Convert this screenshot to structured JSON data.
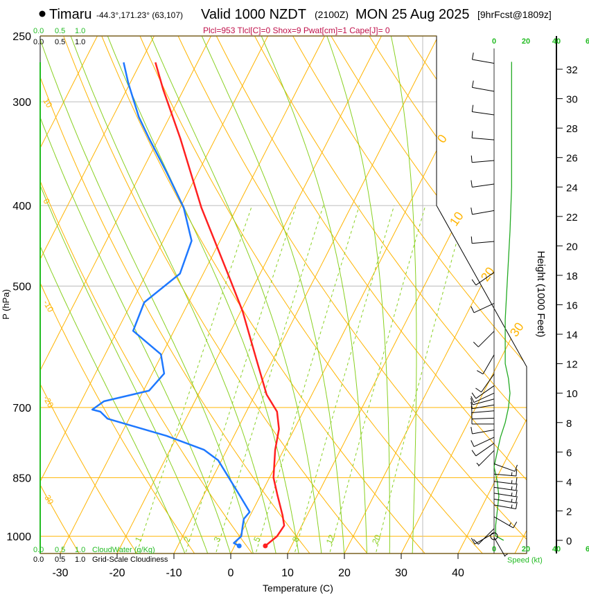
{
  "header": {
    "station": "Timaru",
    "coords": "-44.3°,171.23° (63,107)",
    "valid": "Valid 1000 NZDT",
    "utc": "(2100Z)",
    "date": "MON 25 Aug 2025",
    "forecast": "[9hrFcst@1809z]",
    "indices": "Plcl=953 Tlcl[C]=0 Shox=9 Pwat[cm]=1 Cape[J]= 0"
  },
  "cloud_scale": {
    "ticks": [
      "0.0",
      "0.5",
      "1.0"
    ],
    "cloudwater_label": "CloudWater (g/Kg)",
    "cloudiness_label": "Grid-Scale Cloudiness"
  },
  "colors": {
    "temperature": "#ff2020",
    "dewpoint": "#1e78ff",
    "isotherm": "#ffb400",
    "moist": "#88d020",
    "speed": "#22aa22"
  },
  "chart_data": {
    "type": "line",
    "subtype": "skew-T log-P",
    "xlabel": "Temperature (C)",
    "ylabel": "P (hPa)",
    "y2label": "Height (1000 Feet)",
    "speed_label": "Speed (kt)",
    "x_ticks": [
      "-30",
      "-20",
      "-10",
      "0",
      "10",
      "20",
      "30",
      "40"
    ],
    "x_tick_values": [
      -30,
      -20,
      -10,
      0,
      10,
      20,
      30,
      40
    ],
    "p_ticks": [
      "250",
      "300",
      "400",
      "500",
      "700",
      "850",
      "1000"
    ],
    "p_tick_values": [
      250,
      300,
      400,
      500,
      700,
      850,
      1000
    ],
    "height_ticks": [
      "0",
      "2",
      "4",
      "6",
      "8",
      "10",
      "12",
      "14",
      "16",
      "18",
      "20",
      "22",
      "24",
      "26",
      "28",
      "30",
      "32"
    ],
    "speed_ticks": [
      "0",
      "20",
      "40",
      "6"
    ],
    "mixing_ratio_labels": [
      "1",
      "2",
      "3",
      "5",
      "8",
      "12",
      "20"
    ],
    "mixing_ratio_values": [
      1,
      2,
      3,
      5,
      8,
      12,
      20
    ],
    "isotherm_labels_left": [
      "10",
      "0",
      "-10",
      "-20",
      "-30"
    ],
    "isotherm_labels_right": [
      "0",
      "10",
      "20",
      "30"
    ],
    "ylim_hPa": [
      1049,
      250
    ],
    "series": [
      {
        "name": "Temperature",
        "color": "#ff2020",
        "points": [
          [
            1027,
            5.4
          ],
          [
            1000,
            6.6
          ],
          [
            971,
            6.9
          ],
          [
            944,
            5.7
          ],
          [
            891,
            2.9
          ],
          [
            850,
            0.7
          ],
          [
            787,
            -1.5
          ],
          [
            743,
            -2.7
          ],
          [
            708,
            -4.6
          ],
          [
            675,
            -8.0
          ],
          [
            613,
            -12.9
          ],
          [
            536,
            -19.7
          ],
          [
            487,
            -25.2
          ],
          [
            402,
            -36.3
          ],
          [
            332,
            -46.2
          ],
          [
            290,
            -53.6
          ],
          [
            269,
            -57.4
          ]
        ]
      },
      {
        "name": "Dewpoint",
        "color": "#1e78ff",
        "points": [
          [
            1027,
            0.8
          ],
          [
            1019,
            -0.4
          ],
          [
            1000,
            0.3
          ],
          [
            971,
            -0.4
          ],
          [
            953,
            -0.8
          ],
          [
            935,
            -0.4
          ],
          [
            891,
            -3.8
          ],
          [
            810,
            -10.6
          ],
          [
            787,
            -14.0
          ],
          [
            757,
            -21.9
          ],
          [
            722,
            -33.8
          ],
          [
            708,
            -35.7
          ],
          [
            704,
            -37.3
          ],
          [
            688,
            -36.0
          ],
          [
            668,
            -29.0
          ],
          [
            637,
            -27.9
          ],
          [
            604,
            -30.2
          ],
          [
            566,
            -37.2
          ],
          [
            523,
            -37.8
          ],
          [
            483,
            -34.1
          ],
          [
            441,
            -35.0
          ],
          [
            402,
            -39.4
          ],
          [
            365,
            -45.5
          ],
          [
            332,
            -51.7
          ],
          [
            313,
            -55.4
          ],
          [
            285,
            -60.3
          ],
          [
            269,
            -63.0
          ]
        ]
      }
    ],
    "wind_speed_profile": [
      [
        0,
        6
      ],
      [
        0.3,
        1
      ],
      [
        1,
        1
      ],
      [
        2,
        2
      ],
      [
        3,
        3
      ],
      [
        4,
        2
      ],
      [
        5,
        0
      ],
      [
        6,
        2
      ],
      [
        7,
        4
      ],
      [
        8,
        7
      ],
      [
        9,
        9
      ],
      [
        10,
        10
      ],
      [
        11,
        9
      ],
      [
        12,
        7
      ],
      [
        13,
        7
      ],
      [
        15,
        7
      ],
      [
        17,
        8
      ],
      [
        19,
        9
      ],
      [
        21,
        10
      ],
      [
        24,
        11
      ],
      [
        27,
        11
      ],
      [
        30,
        11
      ],
      [
        32.5,
        11
      ]
    ],
    "wind_barbs": [
      {
        "h": 32.4,
        "dir": 280,
        "spd": 10
      },
      {
        "h": 30.5,
        "dir": 280,
        "spd": 10
      },
      {
        "h": 28.9,
        "dir": 278,
        "spd": 10
      },
      {
        "h": 27.2,
        "dir": 275,
        "spd": 10
      },
      {
        "h": 25.8,
        "dir": 265,
        "spd": 10
      },
      {
        "h": 24.2,
        "dir": 262,
        "spd": 10
      },
      {
        "h": 22.4,
        "dir": 260,
        "spd": 10
      },
      {
        "h": 20.3,
        "dir": 265,
        "spd": 10
      },
      {
        "h": 18.2,
        "dir": 235,
        "spd": 10
      },
      {
        "h": 16.1,
        "dir": 245,
        "spd": 10
      },
      {
        "h": 14.2,
        "dir": 225,
        "spd": 10
      },
      {
        "h": 12.6,
        "dir": 210,
        "spd": 10
      },
      {
        "h": 11.3,
        "dir": 215,
        "spd": 10
      },
      {
        "h": 10.5,
        "dir": 235,
        "spd": 10
      },
      {
        "h": 10.0,
        "dir": 245,
        "spd": 10
      },
      {
        "h": 9.6,
        "dir": 255,
        "spd": 10
      },
      {
        "h": 9.2,
        "dir": 260,
        "spd": 10
      },
      {
        "h": 8.8,
        "dir": 265,
        "spd": 10
      },
      {
        "h": 8.3,
        "dir": 268,
        "spd": 10
      },
      {
        "h": 7.9,
        "dir": 270,
        "spd": 10
      },
      {
        "h": 7.5,
        "dir": 260,
        "spd": 10
      },
      {
        "h": 7.0,
        "dir": 245,
        "spd": 10
      },
      {
        "h": 6.6,
        "dir": 235,
        "spd": 10
      },
      {
        "h": 6.1,
        "dir": 225,
        "spd": 5
      },
      {
        "h": 5.2,
        "dir": 110,
        "spd": 10
      },
      {
        "h": 4.5,
        "dir": 95,
        "spd": 15
      },
      {
        "h": 4.0,
        "dir": 97,
        "spd": 15
      },
      {
        "h": 3.6,
        "dir": 98,
        "spd": 15
      },
      {
        "h": 3.2,
        "dir": 99,
        "spd": 15
      },
      {
        "h": 2.8,
        "dir": 100,
        "spd": 15
      },
      {
        "h": 2.4,
        "dir": 100,
        "spd": 15
      },
      {
        "h": 1.6,
        "dir": 120,
        "spd": 15
      },
      {
        "h": 0.8,
        "dir": 225,
        "spd": 10
      },
      {
        "h": 0.5,
        "dir": 240,
        "spd": 10
      },
      {
        "h": 0.2,
        "dir": 150,
        "spd": 5
      }
    ]
  }
}
